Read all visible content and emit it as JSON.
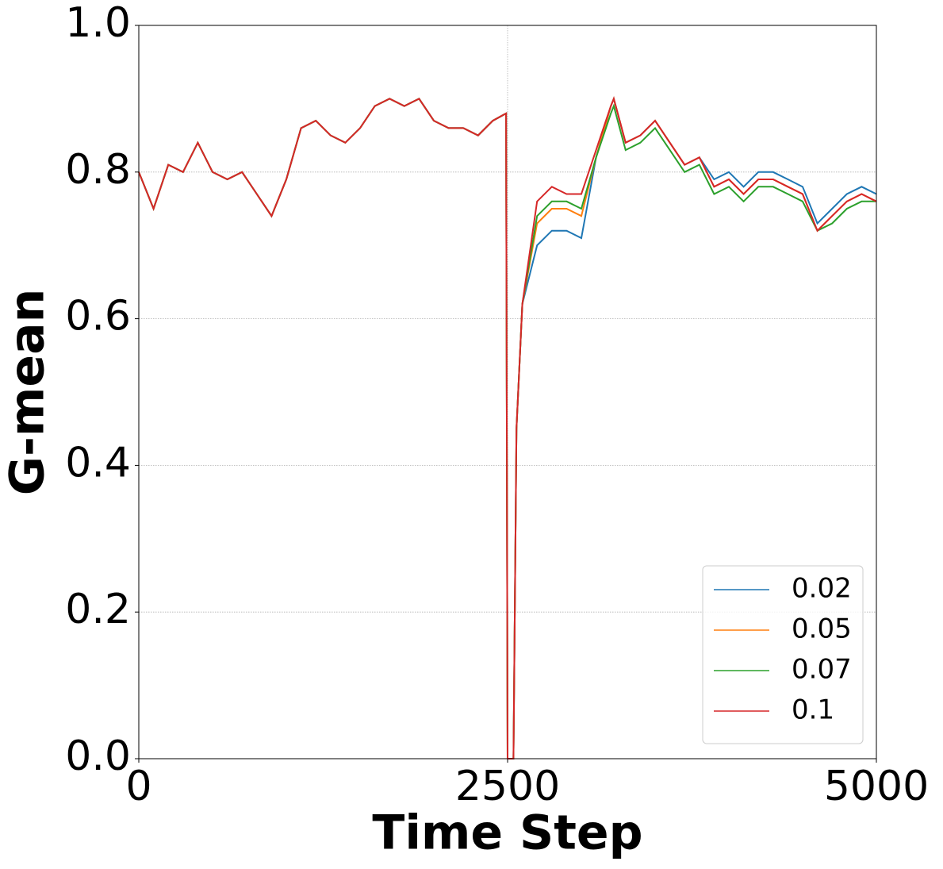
{
  "chart_data": {
    "type": "line",
    "xlabel": "Time Step",
    "ylabel": "G-mean",
    "x": [
      0,
      100,
      200,
      300,
      400,
      500,
      600,
      700,
      800,
      900,
      1000,
      1100,
      1200,
      1300,
      1400,
      1500,
      1600,
      1700,
      1800,
      1900,
      2000,
      2100,
      2200,
      2300,
      2400,
      2490,
      2500,
      2540,
      2560,
      2600,
      2700,
      2800,
      2900,
      3000,
      3100,
      3200,
      3220,
      3300,
      3400,
      3500,
      3600,
      3700,
      3800,
      3900,
      4000,
      4100,
      4200,
      4300,
      4400,
      4500,
      4600,
      4700,
      4800,
      4900,
      5000
    ],
    "series": [
      {
        "name": "0.02",
        "color": "#1f77b4",
        "values": [
          0.8,
          0.75,
          0.81,
          0.8,
          0.84,
          0.8,
          0.79,
          0.8,
          0.77,
          0.74,
          0.79,
          0.86,
          0.87,
          0.85,
          0.84,
          0.86,
          0.89,
          0.9,
          0.89,
          0.9,
          0.87,
          0.86,
          0.86,
          0.85,
          0.87,
          0.88,
          0,
          0,
          0.45,
          0.62,
          0.7,
          0.72,
          0.72,
          0.71,
          0.82,
          0.89,
          0.9,
          0.84,
          0.85,
          0.87,
          0.84,
          0.81,
          0.82,
          0.79,
          0.8,
          0.78,
          0.8,
          0.8,
          0.79,
          0.78,
          0.73,
          0.75,
          0.77,
          0.78,
          0.77
        ]
      },
      {
        "name": "0.05",
        "color": "#ff7f0e",
        "values": [
          0.8,
          0.75,
          0.81,
          0.8,
          0.84,
          0.8,
          0.79,
          0.8,
          0.77,
          0.74,
          0.79,
          0.86,
          0.87,
          0.85,
          0.84,
          0.86,
          0.89,
          0.9,
          0.89,
          0.9,
          0.87,
          0.86,
          0.86,
          0.85,
          0.87,
          0.88,
          0,
          0,
          0.45,
          0.62,
          0.73,
          0.75,
          0.75,
          0.74,
          0.82,
          0.89,
          0.9,
          0.84,
          0.85,
          0.87,
          0.84,
          0.81,
          0.82,
          0.78,
          0.79,
          0.77,
          0.79,
          0.79,
          0.78,
          0.77,
          0.72,
          0.74,
          0.76,
          0.77,
          0.76
        ]
      },
      {
        "name": "0.07",
        "color": "#2ca02c",
        "values": [
          0.8,
          0.75,
          0.81,
          0.8,
          0.84,
          0.8,
          0.79,
          0.8,
          0.77,
          0.74,
          0.79,
          0.86,
          0.87,
          0.85,
          0.84,
          0.86,
          0.89,
          0.9,
          0.89,
          0.9,
          0.87,
          0.86,
          0.86,
          0.85,
          0.87,
          0.88,
          0,
          0,
          0.45,
          0.62,
          0.74,
          0.76,
          0.76,
          0.75,
          0.82,
          0.88,
          0.89,
          0.83,
          0.84,
          0.86,
          0.83,
          0.8,
          0.81,
          0.77,
          0.78,
          0.76,
          0.78,
          0.78,
          0.77,
          0.76,
          0.72,
          0.73,
          0.75,
          0.76,
          0.76
        ]
      },
      {
        "name": "0.1",
        "color": "#d62728",
        "values": [
          0.8,
          0.75,
          0.81,
          0.8,
          0.84,
          0.8,
          0.79,
          0.8,
          0.77,
          0.74,
          0.79,
          0.86,
          0.87,
          0.85,
          0.84,
          0.86,
          0.89,
          0.9,
          0.89,
          0.9,
          0.87,
          0.86,
          0.86,
          0.85,
          0.87,
          0.88,
          0,
          0,
          0.45,
          0.62,
          0.76,
          0.78,
          0.77,
          0.77,
          0.83,
          0.89,
          0.9,
          0.84,
          0.85,
          0.87,
          0.84,
          0.81,
          0.82,
          0.78,
          0.79,
          0.77,
          0.79,
          0.79,
          0.78,
          0.77,
          0.72,
          0.74,
          0.76,
          0.77,
          0.76
        ]
      }
    ],
    "xlim": [
      0,
      5000
    ],
    "xticks": [
      0,
      2500,
      5000
    ],
    "ylim": [
      0,
      1
    ],
    "yticks": [
      {
        "value": 0,
        "label": "0.0"
      },
      0.2,
      0.4,
      0.6,
      0.8,
      {
        "value": 1,
        "label": "1.0"
      }
    ],
    "grid": true,
    "legend": "lower right"
  }
}
